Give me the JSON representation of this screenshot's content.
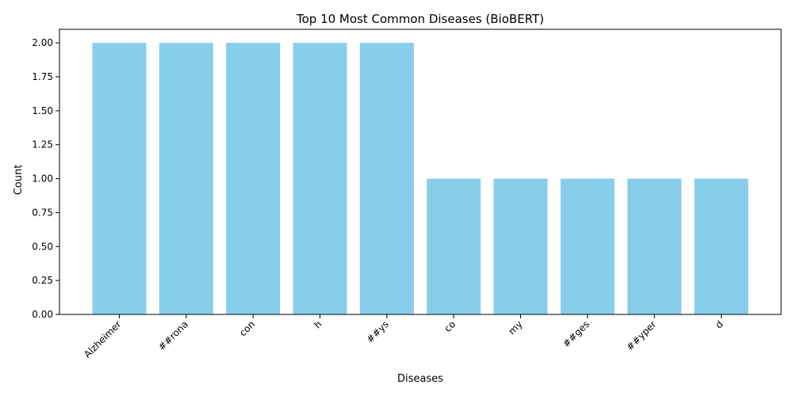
{
  "chart_data": {
    "type": "bar",
    "title": "Top 10 Most Common Diseases (BioBERT)",
    "xlabel": "Diseases",
    "ylabel": "Count",
    "categories": [
      "Alzheimer",
      "##rona",
      "con",
      "h",
      "##ys",
      "co",
      "my",
      "##ges",
      "##yper",
      "d"
    ],
    "values": [
      2,
      2,
      2,
      2,
      2,
      1,
      1,
      1,
      1,
      1
    ],
    "ylim": [
      0,
      2.1
    ],
    "yticks": [
      "0.00",
      "0.25",
      "0.50",
      "0.75",
      "1.00",
      "1.25",
      "1.50",
      "1.75",
      "2.00"
    ],
    "grid": false,
    "legend": "none",
    "bar_color": "#87ceeb"
  }
}
